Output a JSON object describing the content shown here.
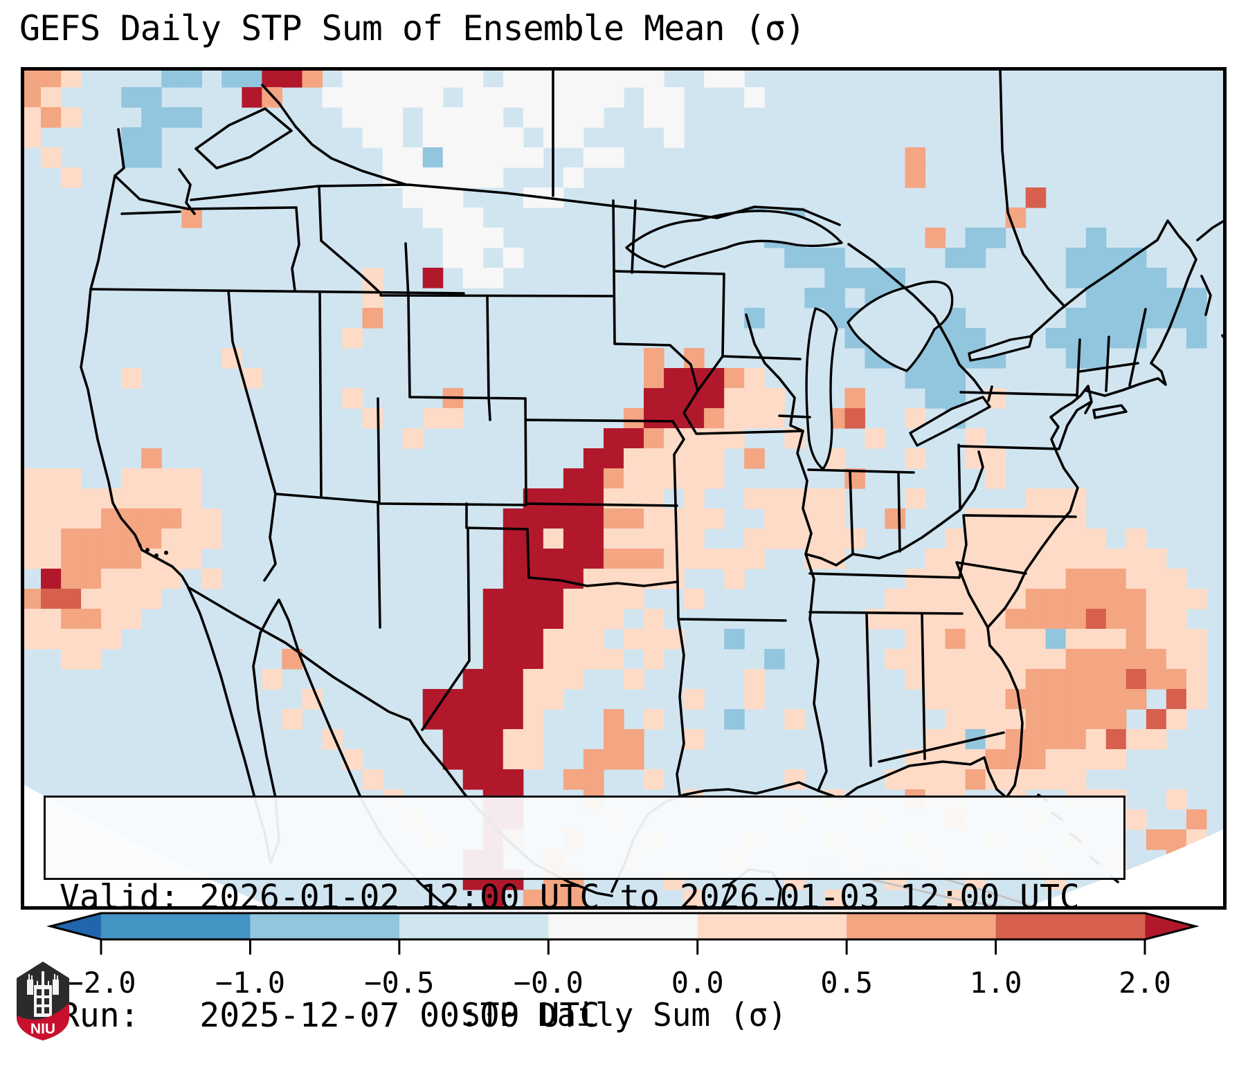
{
  "title": "GEFS Daily STP Sum of Ensemble Mean (σ)",
  "info_box": {
    "line1": "Valid: 2026-01-02 12:00 UTC to 2026-01-03 12:00 UTC",
    "line2": "Run:   2025-12-07 00:00 UTC"
  },
  "logo": {
    "text": "NIU",
    "shield_dark": "#2b2b2e",
    "shield_red": "#c8102e"
  },
  "chart_data": {
    "type": "heatmap",
    "title": "GEFS Daily STP Sum of Ensemble Mean (σ)",
    "colorbar": {
      "label": "STP Daily Sum (σ)",
      "tick_labels": [
        "−2.0",
        "−1.0",
        "−0.5",
        "−0.0",
        "0.0",
        "0.5",
        "1.0",
        "2.0"
      ],
      "segment_colors": [
        "#4393c3",
        "#92c5de",
        "#d1e5f0",
        "#f7f7f7",
        "#fddbc7",
        "#f4a582",
        "#d6604d"
      ],
      "extend_left_color": "#2166ac",
      "extend_right_color": "#b2182b",
      "extend": "both"
    },
    "grid": {
      "n_cols": 60,
      "n_rows": 42,
      "base_color": "#d1e5f0",
      "palette": {
        "b": "#92c5de",
        "w": "#f7f7f7",
        "p": "#fddbc7",
        "s": "#f4a582",
        "r": "#d6604d",
        "R": "#b2182b"
      },
      "bins_sigma": {
        ".": "-0.5 to -0.0",
        "b": "-1.0 to -0.5",
        "w": "-0.0 to 0.0",
        "p": "0.0 to 0.5",
        "s": "0.5 to 1.0",
        "r": "1.0 to 2.0",
        "R": "> 2.0"
      },
      "cells": [
        "ssp....bb.bbRRs.wwwwwww.wwwwwwww..ww........................",
        "sp...bb....Rs..wwwwww.wwwwwwww.ww...w.......................",
        "psp...bbb.......www.wwww.wwww..ww...........................",
        "p....bb..........ww.wwwww.ww....w...........................",
        ".p...bb...........wwbwwwww..ww..............s...............",
        "..p...............wwwwww...w................s...............",
        "...................www...ww.......................r.........",
        "........s...........www.............b.b..........s..........",
        ".....................www.............bb......s.bb....b......",
        ".....................ww.w.............bbb.....bb....bbbb....",
        ".................p..R.ww................bbbb........bbbbb...",
        ".................p.....................bb.bbb........bbbbbb.",
        ".................s..................b...bbbbbbb.....bbbbbbb.",
        "................p........................bbbbbbb...bbbbb..b.",
        "..........p....................s.s........bbbbbbb...bb......",
        ".....p.....p...................sRRRsp.......bbb.............",
        "................p....s.........RRRRppp...s...bb.p...........",
        ".................p..pp........sRRRsppp..sr..p.b.............",
        "...................p.........RRspppp..p...p....p............",
        "......s.....................RRppppp.s...p...p..pp...........",
        "ppp..pppp..................RRsppppp......s......p...........",
        "ppppppppp................RRRRppp.p..ppppp...p.....ppp.......",
        "ppppsssspp..............RRRRRsspppp..pppp..s...pppppp.......",
        "ppsssssppp..............RRpRRppppp..pppppp....pppppppp.p....",
        "ppssssppp...............RRRRRsssppppp..pp....pppppppppppp...",
        ".Rsspppp.p..............RRRRppppp..p........ppppppppsssppp..",
        "srrpppp................RRRRpppp..p.........pppppppssssssppp.",
        "ppsspp.................RRRRppp.p..........pppppppssssrsspp..",
        "ppppp..................RRRppp.ppp..b........ppsppppbpppsppp.",
        "..pp.........s.........RRRpppp.p.....b.....pppppppppssssspp.",
        "............p.........RRRppp..p.....p.......ppppppsssssrssp.",
        "..............p.....RRRRRpp......p..p........ppppsssssss.rp.",
        ".............p......RRRRRp...s.p...b..p.......ppppsssss.rp..",
        "...............p.....RRRpp...ss..p...........ppbpssssprpp...",
        "................p....RRRpp..sss.............ppppssspppp.....",
        ".................p....RRR..ss..p......p....ppppsppppp.......",
        "..................p....RR...s....p......p...spp..p..ppp..p..",
        "...................p...RR....p........p...p...s...p....p..s.",
        "....................p..Rs..s...p....p...p...p...p...p...ssp.",
        "......................RR..s...p....p.....p...p....p...p..s..",
        "......................RRR.ss....p.....p....p...p...p....s.p.",
        ".......................R.sss.....p......p.....p......p...p.."
      ]
    }
  }
}
